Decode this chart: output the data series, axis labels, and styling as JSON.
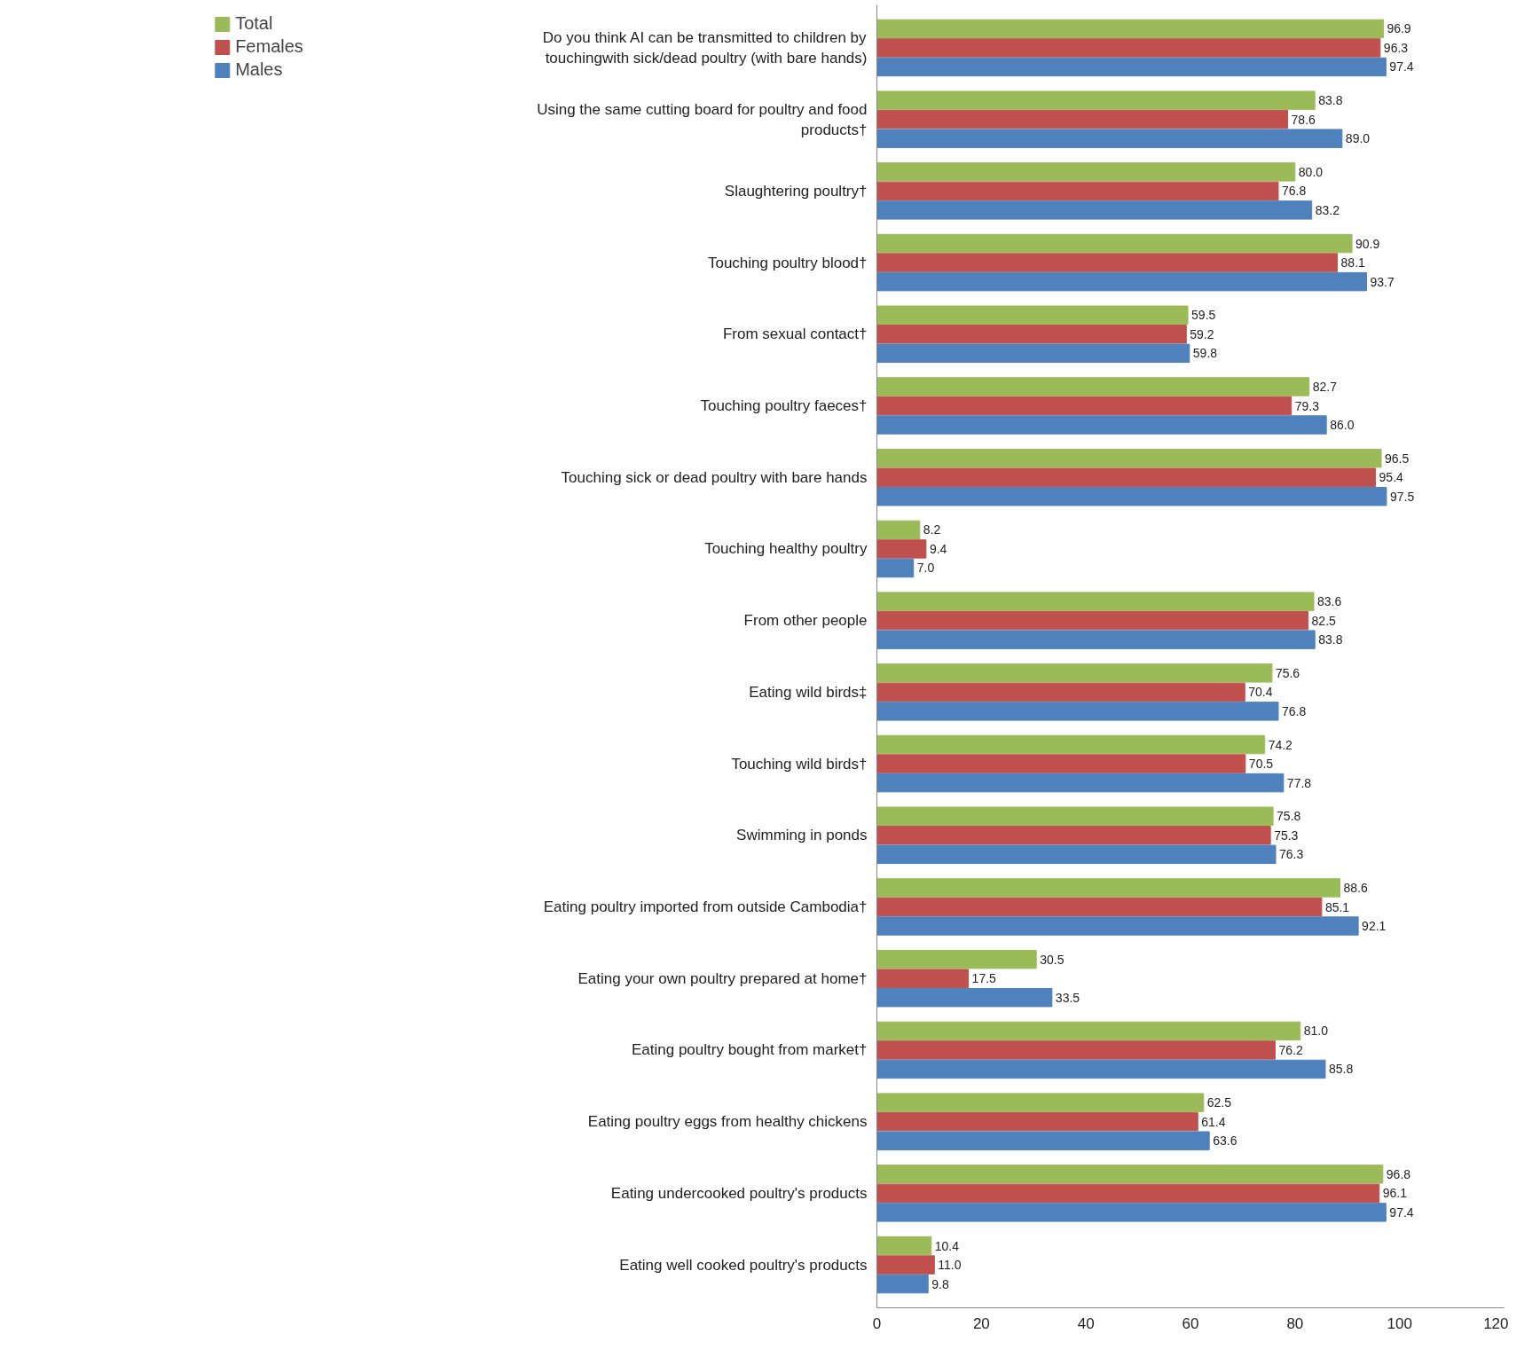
{
  "chart_data": {
    "type": "bar",
    "orientation": "horizontal",
    "categories": [
      "Do you think AI can be transmitted to children by touchingwith sick/dead poultry (with bare hands)",
      "Using the same cutting board for poultry and food products†",
      "Slaughtering poultry†",
      "Touching poultry blood†",
      "From sexual contact†",
      "Touching poultry faeces†",
      "Touching sick or dead poultry with bare hands",
      "Touching healthy poultry",
      "From other people",
      "Eating wild birds‡",
      "Touching wild birds†",
      "Swimming in ponds",
      "Eating poultry imported from outside Cambodia†",
      "Eating your own poultry prepared at home†",
      "Eating poultry bought from market†",
      "Eating poultry eggs from healthy chickens",
      "Eating undercooked poultry's products",
      "Eating well cooked poultry's products"
    ],
    "series": [
      {
        "name": "Total",
        "color": "#9bbb59",
        "values": [
          96.9,
          83.8,
          80.0,
          90.9,
          59.5,
          82.7,
          96.5,
          8.2,
          83.6,
          75.6,
          74.2,
          75.8,
          88.6,
          30.5,
          81.0,
          62.5,
          96.8,
          10.4
        ],
        "value_labels": [
          "96.9",
          "83.8",
          "80.0",
          "90.9",
          "59.5",
          "82.7",
          "96.5",
          "8.2",
          "83.6",
          "75.6",
          "74.2",
          "75.8",
          "88.6",
          "30.5",
          "81.0",
          "62.5",
          "96.8",
          "10.4"
        ]
      },
      {
        "name": "Females",
        "color": "#c0504d",
        "values": [
          96.3,
          78.6,
          76.8,
          88.1,
          59.2,
          79.3,
          95.4,
          9.4,
          82.5,
          70.4,
          70.5,
          75.3,
          85.1,
          17.5,
          76.2,
          61.4,
          96.1,
          11.0
        ],
        "value_labels": [
          "96.3",
          "78.6",
          "76.8",
          "88.1",
          "59.2",
          "79.3",
          "95.4",
          "9.4",
          "82.5",
          "70.4",
          "70.5",
          "75.3",
          "85.1",
          "17.5",
          "76.2",
          "61.4",
          "96.1",
          "11.0"
        ]
      },
      {
        "name": "Males",
        "color": "#4f81bd",
        "values": [
          97.4,
          89.0,
          83.2,
          93.7,
          59.8,
          86.0,
          97.5,
          7.0,
          83.8,
          76.8,
          77.8,
          76.3,
          92.1,
          33.5,
          85.8,
          63.6,
          97.4,
          9.8
        ],
        "value_labels": [
          "97.4",
          "89.0",
          "83.2",
          "93.7",
          "59.8",
          "86.0",
          "97.5",
          "7.0",
          "83.8",
          "76.8",
          "77.8",
          "76.3",
          "92.1",
          "33.5",
          "85.8",
          "63.6",
          "97.4",
          "9.8"
        ]
      }
    ],
    "xlim": [
      0,
      120
    ],
    "xticks": [
      0,
      20,
      40,
      60,
      80,
      100,
      120
    ],
    "grid": false,
    "legend": "left"
  }
}
